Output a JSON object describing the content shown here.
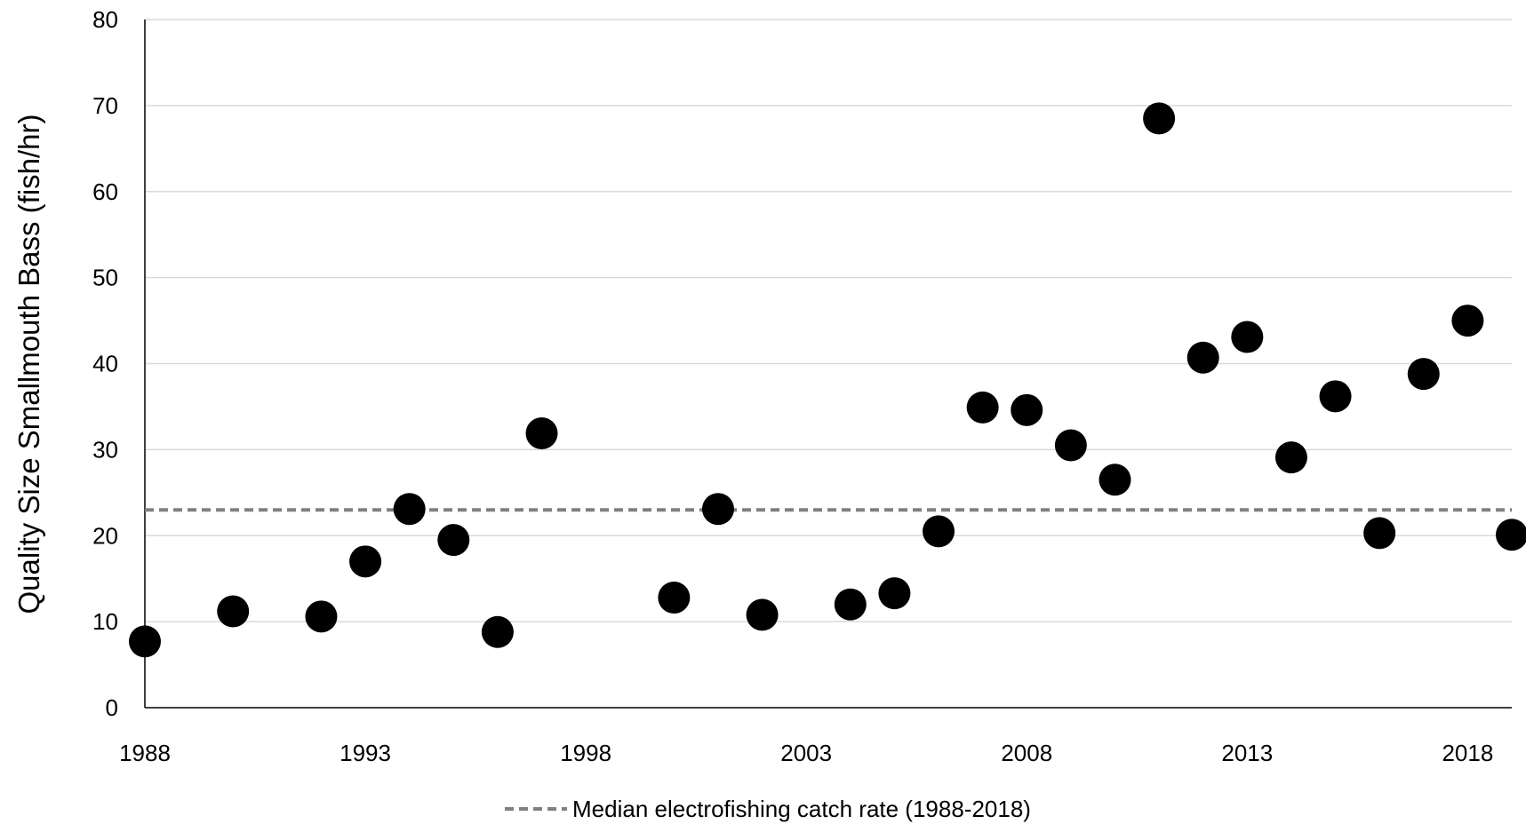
{
  "chart_data": {
    "type": "scatter",
    "title": "",
    "xlabel": "",
    "ylabel": "Quality Size Smallmouth Bass (fish/hr)",
    "xlim": [
      1988,
      2019
    ],
    "ylim": [
      0,
      80
    ],
    "x_ticks": [
      "1988",
      "1993",
      "1998",
      "2003",
      "2008",
      "2013",
      "2018"
    ],
    "y_ticks": [
      "0",
      "10",
      "20",
      "30",
      "40",
      "50",
      "60",
      "70",
      "80"
    ],
    "grid": "horizontal",
    "legend_position": "bottom",
    "series": [
      {
        "marker": "circle",
        "color": "#000000",
        "points": [
          {
            "x": 1988,
            "y": 7.7
          },
          {
            "x": 1990,
            "y": 11.2
          },
          {
            "x": 1992,
            "y": 10.6
          },
          {
            "x": 1993,
            "y": 17.0
          },
          {
            "x": 1994,
            "y": 23.1
          },
          {
            "x": 1995,
            "y": 19.5
          },
          {
            "x": 1996,
            "y": 8.8
          },
          {
            "x": 1997,
            "y": 31.9
          },
          {
            "x": 2000,
            "y": 12.8
          },
          {
            "x": 2001,
            "y": 23.1
          },
          {
            "x": 2002,
            "y": 10.8
          },
          {
            "x": 2004,
            "y": 12.0
          },
          {
            "x": 2005,
            "y": 13.3
          },
          {
            "x": 2006,
            "y": 20.5
          },
          {
            "x": 2007,
            "y": 34.9
          },
          {
            "x": 2008,
            "y": 34.6
          },
          {
            "x": 2009,
            "y": 30.5
          },
          {
            "x": 2010,
            "y": 26.5
          },
          {
            "x": 2011,
            "y": 68.5
          },
          {
            "x": 2012,
            "y": 40.7
          },
          {
            "x": 2013,
            "y": 43.1
          },
          {
            "x": 2014,
            "y": 29.1
          },
          {
            "x": 2015,
            "y": 36.2
          },
          {
            "x": 2016,
            "y": 20.3
          },
          {
            "x": 2017,
            "y": 38.8
          },
          {
            "x": 2018,
            "y": 45.0
          },
          {
            "x": 2019,
            "y": 20.1
          }
        ]
      }
    ],
    "reference_line": {
      "name": "Median electrofishing catch rate (1988-2018)",
      "y": 23.0,
      "color": "#808080",
      "style": "dashed"
    }
  }
}
